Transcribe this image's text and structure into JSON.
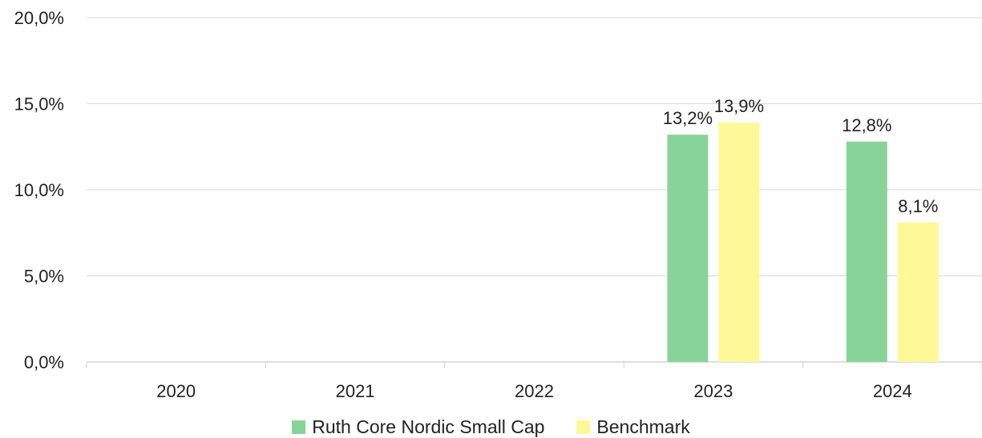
{
  "chart_data": {
    "type": "bar",
    "categories": [
      "2020",
      "2021",
      "2022",
      "2023",
      "2024"
    ],
    "series": [
      {
        "name": "Ruth Core Nordic Small Cap",
        "values": [
          null,
          null,
          null,
          13.2,
          12.8
        ],
        "labels": [
          null,
          null,
          null,
          "13,2%",
          "12,8%"
        ],
        "color": "#88d498"
      },
      {
        "name": "Benchmark",
        "values": [
          null,
          null,
          null,
          13.9,
          8.1
        ],
        "labels": [
          null,
          null,
          null,
          "13,9%",
          "8,1%"
        ],
        "color": "#fff899"
      }
    ],
    "yticks": [
      0,
      5,
      10,
      15,
      20
    ],
    "ytick_labels": [
      "0,0%",
      "5,0%",
      "10,0%",
      "15,0%",
      "20,0%"
    ],
    "ylim": [
      0,
      20
    ],
    "grid": true,
    "legend_position": "bottom"
  }
}
